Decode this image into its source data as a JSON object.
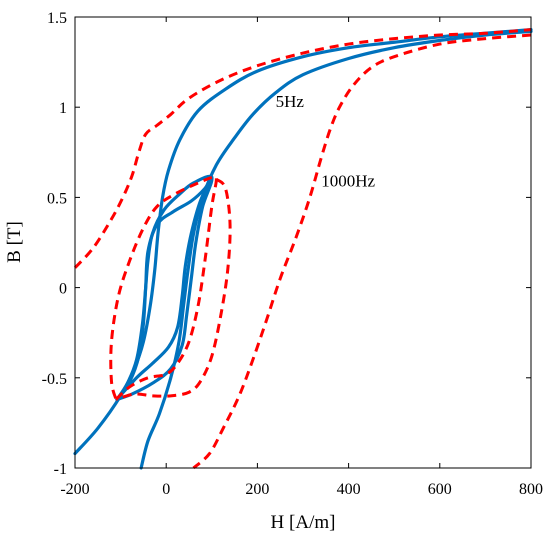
{
  "chart_data": {
    "type": "line",
    "xlabel": "H [A/m]",
    "ylabel": "B [T]",
    "xlim": [
      -200,
      800
    ],
    "ylim": [
      -1,
      1.5
    ],
    "xticks": [
      -200,
      0,
      200,
      400,
      600,
      800
    ],
    "yticks": [
      -1,
      -0.5,
      0,
      0.5,
      1,
      1.5
    ],
    "xtick_labels": [
      "-200",
      "0",
      "200",
      "400",
      "600",
      "800"
    ],
    "ytick_labels": [
      "-1",
      "-0.5",
      "0",
      "0.5",
      "1",
      "1.5"
    ],
    "grid": false,
    "annotations": [
      {
        "text": "5Hz",
        "x": 240,
        "y": 1.0
      },
      {
        "text": "1000Hz",
        "x": 340,
        "y": 0.56
      }
    ],
    "series": [
      {
        "style": "solid",
        "color": "#0072BD",
        "points": [
          [
            -200,
            -0.92
          ],
          [
            -150,
            -0.78
          ],
          [
            -100,
            -0.6
          ],
          [
            -70,
            -0.45
          ],
          [
            -50,
            -0.3
          ],
          [
            -35,
            -0.1
          ],
          [
            -25,
            0.1
          ],
          [
            -18,
            0.3
          ],
          [
            -8,
            0.5
          ],
          [
            5,
            0.65
          ],
          [
            30,
            0.82
          ],
          [
            70,
            0.98
          ],
          [
            130,
            1.1
          ],
          [
            200,
            1.2
          ],
          [
            300,
            1.28
          ],
          [
            400,
            1.33
          ],
          [
            500,
            1.36
          ],
          [
            600,
            1.39
          ],
          [
            700,
            1.41
          ],
          [
            800,
            1.43
          ]
        ]
      },
      {
        "style": "solid",
        "color": "#0072BD",
        "points": [
          [
            800,
            1.42
          ],
          [
            700,
            1.4
          ],
          [
            600,
            1.37
          ],
          [
            500,
            1.33
          ],
          [
            400,
            1.27
          ],
          [
            300,
            1.18
          ],
          [
            240,
            1.08
          ],
          [
            190,
            0.96
          ],
          [
            150,
            0.83
          ],
          [
            110,
            0.68
          ],
          [
            80,
            0.5
          ],
          [
            60,
            0.3
          ],
          [
            48,
            0.1
          ],
          [
            38,
            -0.1
          ],
          [
            28,
            -0.3
          ],
          [
            10,
            -0.5
          ],
          [
            -15,
            -0.7
          ],
          [
            -40,
            -0.85
          ],
          [
            -55,
            -1.0
          ]
        ]
      },
      {
        "style": "solid",
        "color": "#0072BD",
        "points": [
          [
            -108,
            -0.62
          ],
          [
            -65,
            -0.5
          ],
          [
            -30,
            -0.42
          ],
          [
            5,
            -0.33
          ],
          [
            25,
            -0.22
          ],
          [
            35,
            -0.05
          ],
          [
            42,
            0.12
          ],
          [
            55,
            0.3
          ],
          [
            75,
            0.48
          ],
          [
            100,
            0.61
          ],
          [
            85,
            0.55
          ],
          [
            55,
            0.48
          ],
          [
            15,
            0.42
          ],
          [
            -20,
            0.35
          ],
          [
            -40,
            0.2
          ],
          [
            -45,
            0.0
          ],
          [
            -50,
            -0.2
          ],
          [
            -60,
            -0.38
          ],
          [
            -80,
            -0.52
          ],
          [
            -108,
            -0.62
          ]
        ]
      },
      {
        "style": "solid",
        "color": "#0072BD",
        "points": [
          [
            -108,
            -0.62
          ],
          [
            -85,
            -0.53
          ],
          [
            -65,
            -0.4
          ],
          [
            -52,
            -0.2
          ],
          [
            -45,
            0.0
          ],
          [
            -40,
            0.15
          ],
          [
            -30,
            0.3
          ],
          [
            -5,
            0.43
          ],
          [
            30,
            0.52
          ],
          [
            60,
            0.58
          ],
          [
            100,
            0.61
          ],
          [
            80,
            0.45
          ],
          [
            65,
            0.25
          ],
          [
            55,
            0.05
          ],
          [
            45,
            -0.15
          ],
          [
            35,
            -0.32
          ],
          [
            10,
            -0.45
          ],
          [
            -30,
            -0.53
          ],
          [
            -75,
            -0.59
          ],
          [
            -108,
            -0.62
          ]
        ]
      },
      {
        "style": "dashed",
        "color": "#FF0000",
        "points": [
          [
            -200,
            0.11
          ],
          [
            -160,
            0.22
          ],
          [
            -120,
            0.38
          ],
          [
            -95,
            0.5
          ],
          [
            -75,
            0.62
          ],
          [
            -60,
            0.75
          ],
          [
            -45,
            0.85
          ],
          [
            -20,
            0.9
          ],
          [
            10,
            0.96
          ],
          [
            50,
            1.05
          ],
          [
            120,
            1.15
          ],
          [
            200,
            1.23
          ],
          [
            300,
            1.3
          ],
          [
            400,
            1.35
          ],
          [
            500,
            1.38
          ],
          [
            600,
            1.4
          ],
          [
            700,
            1.41
          ],
          [
            800,
            1.43
          ]
        ]
      },
      {
        "style": "dashed",
        "color": "#FF0000",
        "points": [
          [
            800,
            1.4
          ],
          [
            700,
            1.38
          ],
          [
            600,
            1.35
          ],
          [
            500,
            1.28
          ],
          [
            450,
            1.22
          ],
          [
            410,
            1.12
          ],
          [
            380,
            1.0
          ],
          [
            360,
            0.88
          ],
          [
            340,
            0.72
          ],
          [
            315,
            0.5
          ],
          [
            285,
            0.28
          ],
          [
            250,
            0.05
          ],
          [
            220,
            -0.18
          ],
          [
            190,
            -0.4
          ],
          [
            160,
            -0.6
          ],
          [
            125,
            -0.78
          ],
          [
            95,
            -0.92
          ],
          [
            60,
            -1.0
          ]
        ]
      },
      {
        "style": "dashed",
        "color": "#FF0000",
        "points": [
          [
            -110,
            -0.62
          ],
          [
            -80,
            -0.55
          ],
          [
            -40,
            -0.5
          ],
          [
            0,
            -0.48
          ],
          [
            25,
            -0.42
          ],
          [
            50,
            -0.3
          ],
          [
            70,
            -0.1
          ],
          [
            85,
            0.15
          ],
          [
            100,
            0.45
          ],
          [
            110,
            0.6
          ],
          [
            100,
            0.61
          ],
          [
            70,
            0.58
          ],
          [
            20,
            0.52
          ],
          [
            -20,
            0.45
          ],
          [
            -50,
            0.33
          ],
          [
            -80,
            0.15
          ],
          [
            -105,
            -0.05
          ],
          [
            -120,
            -0.3
          ],
          [
            -120,
            -0.52
          ],
          [
            -110,
            -0.62
          ]
        ]
      },
      {
        "style": "dashed",
        "color": "#FF0000",
        "points": [
          [
            110,
            0.6
          ],
          [
            130,
            0.55
          ],
          [
            140,
            0.35
          ],
          [
            135,
            0.1
          ],
          [
            120,
            -0.15
          ],
          [
            100,
            -0.38
          ],
          [
            75,
            -0.52
          ],
          [
            50,
            -0.58
          ],
          [
            10,
            -0.6
          ],
          [
            -30,
            -0.6
          ],
          [
            -70,
            -0.59
          ],
          [
            -110,
            -0.62
          ]
        ]
      }
    ]
  }
}
